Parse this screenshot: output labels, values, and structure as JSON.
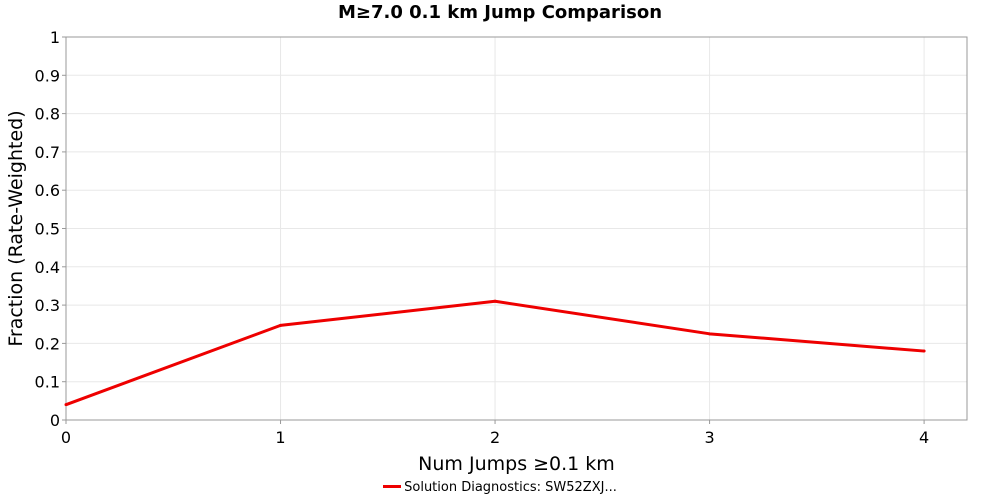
{
  "chart_data": {
    "type": "line",
    "title": "M≥7.0 0.1 km Jump Comparison",
    "xlabel": "Num Jumps ≥0.1 km",
    "ylabel": "Fraction (Rate-Weighted)",
    "xlim": [
      0,
      4.2
    ],
    "ylim": [
      0,
      1
    ],
    "xticks": [
      "0",
      "1",
      "2",
      "3",
      "4"
    ],
    "yticks": [
      "0",
      "0.1",
      "0.2",
      "0.3",
      "0.4",
      "0.5",
      "0.6",
      "0.7",
      "0.8",
      "0.9",
      "1"
    ],
    "grid": true,
    "legend_position": "bottom-center",
    "series": [
      {
        "name": "Solution Diagnostics: SW52ZXJ...",
        "color": "#ee0000",
        "x": [
          0,
          1,
          2,
          3,
          4
        ],
        "y": [
          0.04,
          0.247,
          0.31,
          0.225,
          0.18
        ]
      }
    ]
  }
}
